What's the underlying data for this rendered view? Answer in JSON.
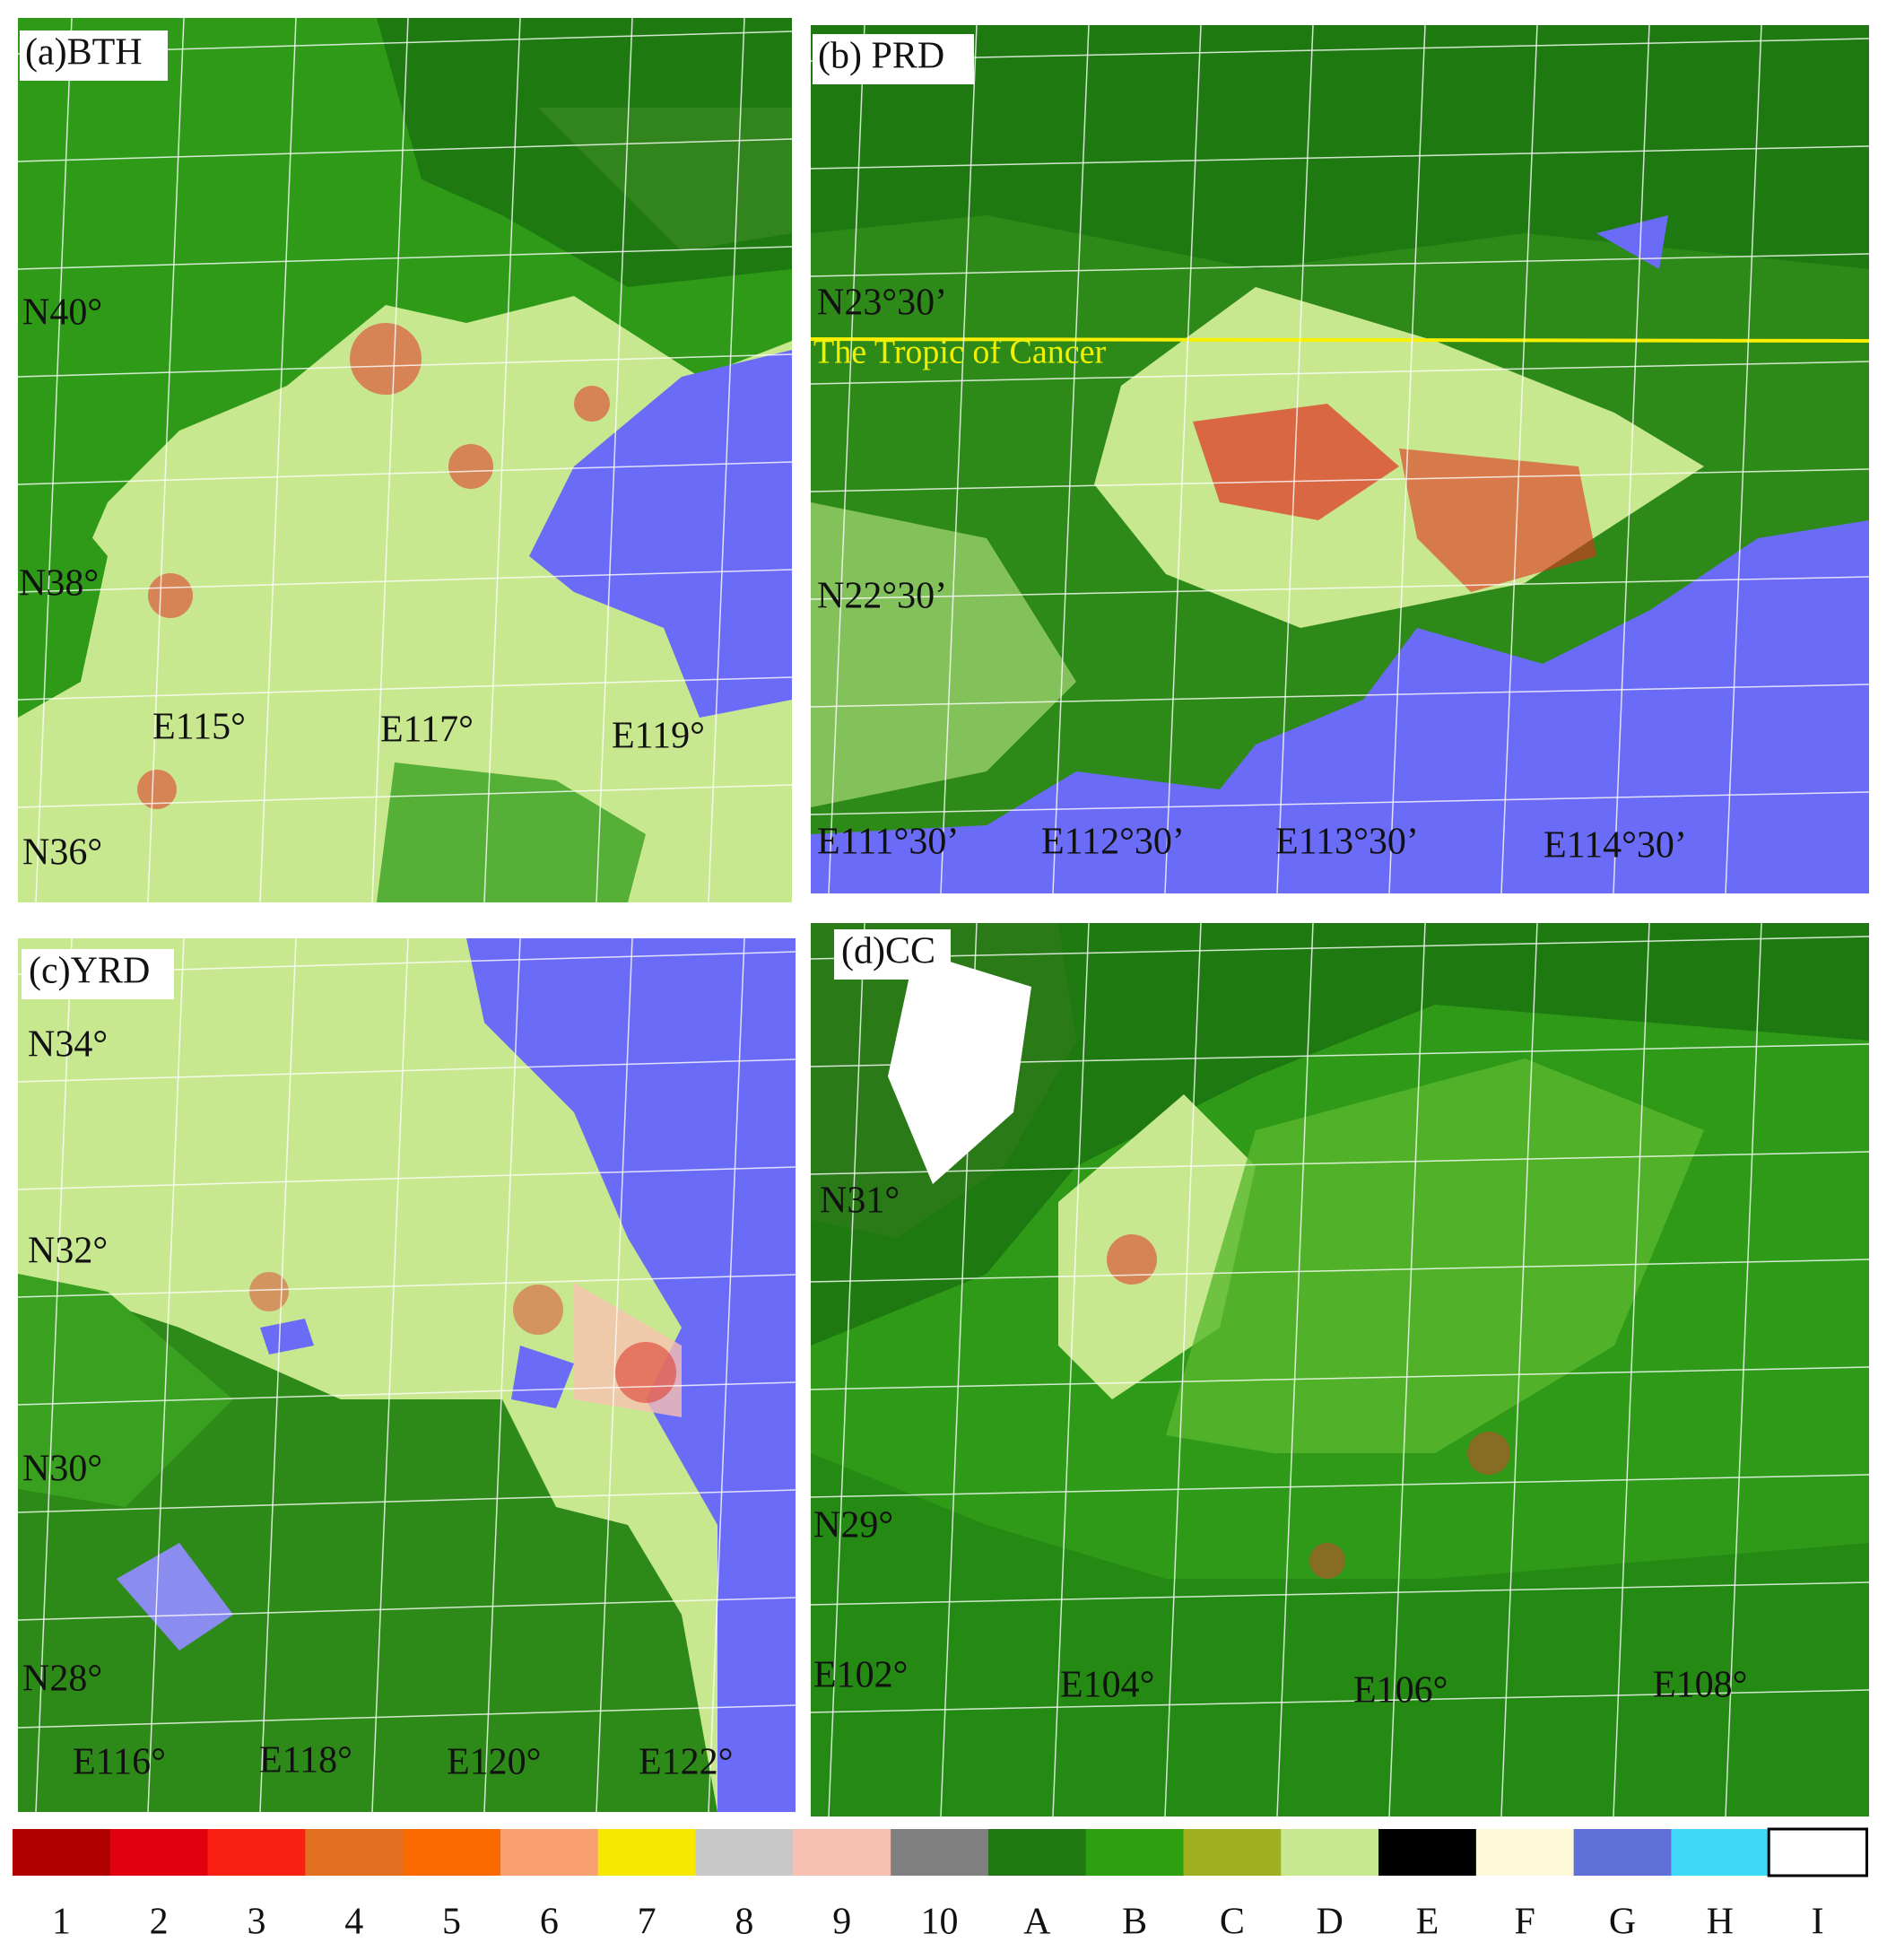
{
  "panels": [
    {
      "title": "(a)BTH",
      "lat_labels": [
        "N40°",
        "N38°",
        "N36°"
      ],
      "lon_labels": [
        "E115°",
        "E117°",
        "E119°"
      ]
    },
    {
      "title": "(b) PRD",
      "lat_labels": [
        "N23°30’",
        "N22°30’"
      ],
      "lon_labels": [
        "E111°30’",
        "E112°30’",
        "E113°30’",
        "E114°30’"
      ],
      "annotation": "The Tropic of Cancer"
    },
    {
      "title": "(c)YRD",
      "lat_labels": [
        "N34°",
        "N32°",
        "N30°",
        "N28°"
      ],
      "lon_labels": [
        "E116°",
        "E118°",
        "E120°",
        "E122°"
      ]
    },
    {
      "title": "(d)CC",
      "lat_labels": [
        "N31°",
        "N29°"
      ],
      "lon_labels": [
        "E102°",
        "E104°",
        "E106°",
        "E108°"
      ]
    }
  ],
  "legend": [
    {
      "label": "1",
      "color": "#b00000"
    },
    {
      "label": "2",
      "color": "#e00010"
    },
    {
      "label": "3",
      "color": "#f82010"
    },
    {
      "label": "4",
      "color": "#e07020"
    },
    {
      "label": "5",
      "color": "#f86a00"
    },
    {
      "label": "6",
      "color": "#f8a070"
    },
    {
      "label": "7",
      "color": "#f8e800"
    },
    {
      "label": "8",
      "color": "#c8c8c8"
    },
    {
      "label": "9",
      "color": "#f8c0b0"
    },
    {
      "label": "10",
      "color": "#808080"
    },
    {
      "label": "A",
      "color": "#1e7a10"
    },
    {
      "label": "B",
      "color": "#2ea010"
    },
    {
      "label": "C",
      "color": "#a0b020"
    },
    {
      "label": "D",
      "color": "#c8e890"
    },
    {
      "label": "E",
      "color": "#000000"
    },
    {
      "label": "F",
      "color": "#fdf8d8"
    },
    {
      "label": "G",
      "color": "#6070d8"
    },
    {
      "label": "H",
      "color": "#40d8f8"
    },
    {
      "label": "I",
      "color": "#ffffff"
    }
  ]
}
